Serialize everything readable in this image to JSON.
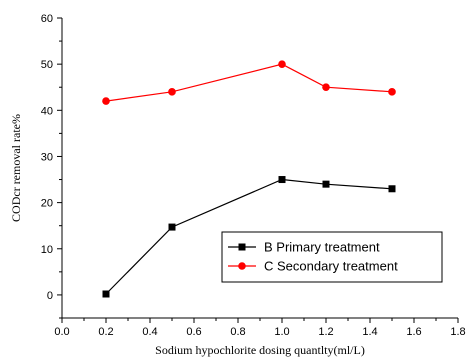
{
  "chart_data": {
    "type": "line",
    "xlabel": "Sodium hypochlorite dosing quantlty(ml/L)",
    "ylabel": "CODcr removal rate%",
    "xlim": [
      0.0,
      1.8
    ],
    "ylim": [
      -5,
      60
    ],
    "xticks": [
      "0.0",
      "0.2",
      "0.4",
      "0.6",
      "0.8",
      "1.0",
      "1.2",
      "1.4",
      "1.6",
      "1.8"
    ],
    "yticks": [
      "0",
      "10",
      "20",
      "30",
      "40",
      "50",
      "60"
    ],
    "x": [
      0.2,
      0.5,
      1.0,
      1.2,
      1.5
    ],
    "series": [
      {
        "name": "B Primary treatment",
        "values": [
          0.2,
          14.7,
          25.0,
          24.0,
          23.0
        ],
        "color": "#000000",
        "marker": "square"
      },
      {
        "name": "C Secondary treatment",
        "values": [
          42.0,
          44.0,
          50.0,
          45.0,
          44.0
        ],
        "color": "#ff0000",
        "marker": "circle"
      }
    ],
    "legend": "bottom-right",
    "grid": false
  }
}
